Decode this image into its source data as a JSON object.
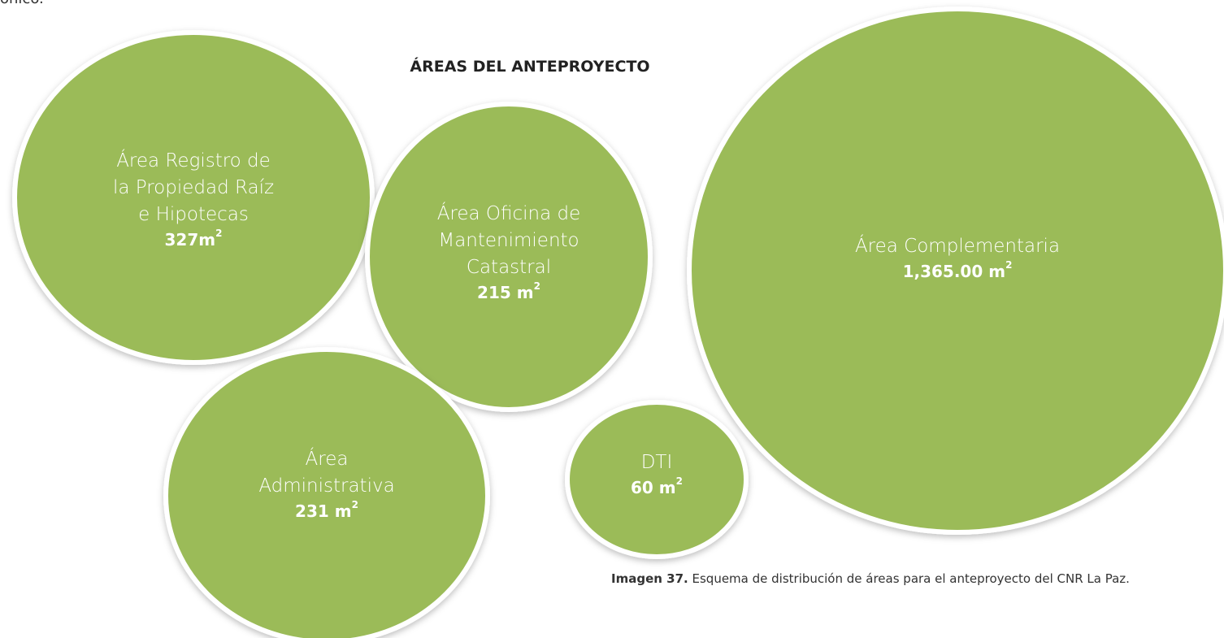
{
  "header": {
    "fragment": "onico.",
    "title": "ÁREAS DEL ANTEPROYECTO"
  },
  "nodes": [
    {
      "label": [
        "Área Registro de",
        "la Propiedad Raíz",
        "e Hipotecas"
      ],
      "value": "327m",
      "superscript": "2"
    },
    {
      "label": [
        "Área Oficina de",
        "Mantenimiento",
        "Catastral"
      ],
      "value": "215 m",
      "superscript": "2"
    },
    {
      "label": [
        "Área Complementaria"
      ],
      "value": "1,365.00 m",
      "superscript": "2"
    },
    {
      "label": [
        "Área",
        "Administrativa"
      ],
      "value": "231 m",
      "superscript": "2"
    },
    {
      "label": [
        "DTI"
      ],
      "value": "60 m",
      "superscript": "2"
    }
  ],
  "caption": {
    "label": "Imagen 37.",
    "text": "Esquema de distribución de áreas para el anteproyecto del CNR La Paz."
  }
}
